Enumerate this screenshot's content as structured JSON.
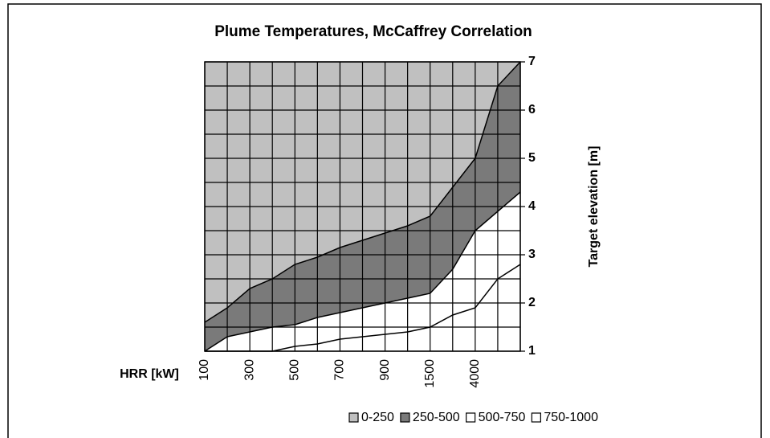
{
  "chart_data": {
    "type": "surface",
    "title": "Plume Temperatures, McCaffrey Correlation",
    "x_label": "HRR [kW]",
    "y_label": "Target elevation [m]",
    "categories": [
      "100",
      null,
      "300",
      null,
      "500",
      null,
      "700",
      null,
      "900",
      null,
      "1500",
      null,
      "4000",
      null,
      null
    ],
    "series": [
      {
        "name": "0-250",
        "color": "#c0c0c0",
        "values": [
          1.6,
          1.9,
          2.3,
          2.5,
          2.8,
          2.95,
          3.15,
          3.3,
          3.45,
          3.6,
          3.8,
          4.4,
          5.0,
          6.5,
          7
        ]
      },
      {
        "name": "250-500",
        "color": "#7a7a7a",
        "values": [
          1.0,
          1.3,
          1.4,
          1.5,
          1.55,
          1.7,
          1.8,
          1.9,
          2.0,
          2.1,
          2.2,
          2.7,
          3.5,
          3.9,
          4.3
        ]
      },
      {
        "name": "500-750",
        "color": "#ffffff",
        "values": [
          1.0,
          1.0,
          1.0,
          1.0,
          1.1,
          1.15,
          1.25,
          1.3,
          1.35,
          1.4,
          1.5,
          1.75,
          1.9,
          2.5,
          2.8
        ]
      },
      {
        "name": "750-1000",
        "color": "#ffffff"
      }
    ],
    "ylim": [
      1,
      7
    ],
    "yticks": [
      1,
      2,
      3,
      4,
      5,
      6,
      7
    ],
    "yminor": [
      1.5,
      2.5,
      3.5,
      4.5,
      5.5,
      6.5
    ],
    "grid": true
  }
}
